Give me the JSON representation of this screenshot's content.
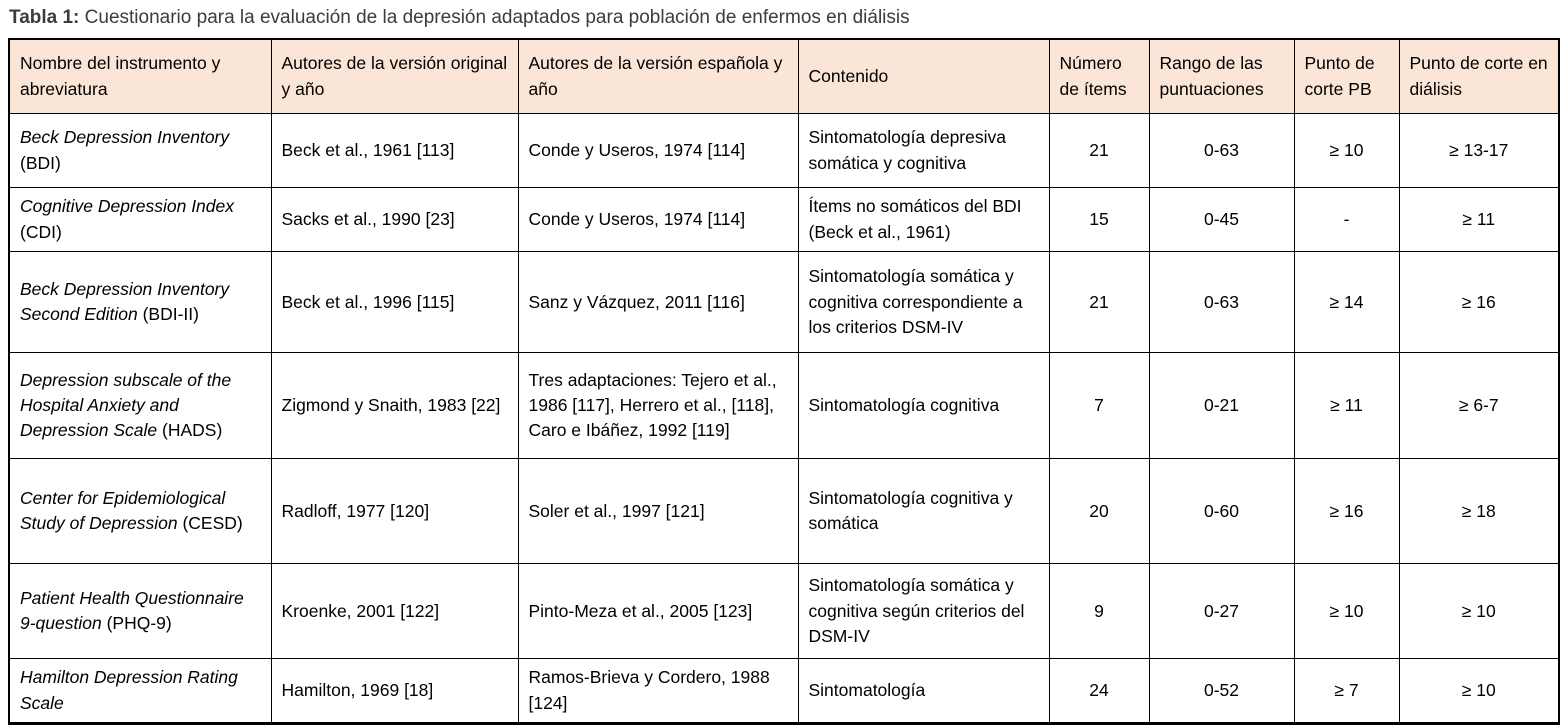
{
  "caption": {
    "label": "Tabla 1:",
    "text": "Cuestionario para la evaluación de la depresión adaptados para población de enfermos en diálisis"
  },
  "colors": {
    "header_bg": "#fbe5d6",
    "border": "#000000",
    "caption_text": "#3c3c3c"
  },
  "columns": [
    "Nombre del instrumento y abreviatura",
    "Autores de la versión original y año",
    "Autores de la versión española y año",
    "Contenido",
    "Número de ítems",
    "Rango de las puntuaciones",
    "Punto de corte PB",
    "Punto de corte en diálisis"
  ],
  "rows": [
    {
      "instrument": "Beck Depression Inventory",
      "abbr": "(BDI)",
      "authors_original": "Beck et al., 1961 [113]",
      "authors_spanish": "Conde y Useros, 1974 [114]",
      "content": "Sintomatología depresiva somática y cognitiva",
      "items": "21",
      "range": "0-63",
      "cutoff_pb": "≥ 10",
      "cutoff_dialysis": "≥ 13-17"
    },
    {
      "instrument": "Cognitive Depression Index",
      "abbr": "(CDI)",
      "authors_original": "Sacks et al., 1990 [23]",
      "authors_spanish": "Conde y Useros, 1974 [114]",
      "content": "Ítems no somáticos del BDI (Beck et al., 1961)",
      "items": "15",
      "range": "0-45",
      "cutoff_pb": "-",
      "cutoff_dialysis": "≥ 11"
    },
    {
      "instrument": "Beck Depression Inventory Second Edition",
      "abbr": "(BDI-II)",
      "authors_original": "Beck et al., 1996 [115]",
      "authors_spanish": "Sanz y Vázquez, 2011 [116]",
      "content": "Sintomatología somática y cognitiva correspondiente a los criterios DSM-IV",
      "items": "21",
      "range": "0-63",
      "cutoff_pb": "≥ 14",
      "cutoff_dialysis": "≥ 16"
    },
    {
      "instrument": "Depression subscale of the Hospital Anxiety and Depression Scale",
      "abbr": "(HADS)",
      "authors_original": "Zigmond y Snaith, 1983 [22]",
      "authors_spanish": "Tres adaptaciones: Tejero et al., 1986 [117], Herrero et al., [118], Caro e Ibáñez, 1992 [119]",
      "content": "Sintomatología cognitiva",
      "items": "7",
      "range": "0-21",
      "cutoff_pb": "≥ 11",
      "cutoff_dialysis": "≥ 6-7"
    },
    {
      "instrument": "Center for Epidemiological Study of Depression",
      "abbr": "(CESD)",
      "authors_original": "Radloff, 1977 [120]",
      "authors_spanish": "Soler et al., 1997 [121]",
      "content": "Sintomatología cognitiva y somática",
      "items": "20",
      "range": "0-60",
      "cutoff_pb": "≥ 16",
      "cutoff_dialysis": "≥ 18"
    },
    {
      "instrument": "Patient Health Questionnaire 9-question",
      "abbr": "(PHQ-9)",
      "authors_original": "Kroenke, 2001 [122]",
      "authors_spanish": "Pinto-Meza et al., 2005 [123]",
      "content": "Sintomatología somática y cognitiva según criterios del DSM-IV",
      "items": "9",
      "range": "0-27",
      "cutoff_pb": "≥ 10",
      "cutoff_dialysis": "≥ 10"
    },
    {
      "instrument": "Hamilton Depression Rating Scale",
      "abbr": "",
      "authors_original": "Hamilton, 1969 [18]",
      "authors_spanish": "Ramos-Brieva y Cordero, 1988 [124]",
      "content": "Sintomatología",
      "items": "24",
      "range": "0-52",
      "cutoff_pb": "≥ 7",
      "cutoff_dialysis": "≥ 10"
    }
  ]
}
